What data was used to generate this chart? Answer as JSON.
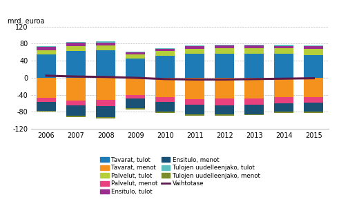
{
  "years": [
    2006,
    2007,
    2008,
    2009,
    2010,
    2011,
    2012,
    2013,
    2014,
    2015
  ],
  "tavarat_tulot": [
    55,
    63,
    64,
    46,
    52,
    56,
    57,
    57,
    56,
    54
  ],
  "palvelut_tulot": [
    10,
    11,
    12,
    9,
    11,
    12,
    13,
    13,
    13,
    14
  ],
  "ensitulo_tulot": [
    7,
    8,
    7,
    5,
    5,
    6,
    6,
    6,
    6,
    6
  ],
  "tulojen_tulot": [
    2,
    2,
    2,
    2,
    2,
    2,
    2,
    2,
    2,
    2
  ],
  "tavarat_menot": [
    -47,
    -54,
    -52,
    -40,
    -46,
    -50,
    -49,
    -48,
    -46,
    -45
  ],
  "palvelut_menot": [
    -10,
    -11,
    -14,
    -9,
    -10,
    -13,
    -15,
    -15,
    -14,
    -14
  ],
  "ensitulo_menot": [
    -20,
    -24,
    -26,
    -22,
    -23,
    -23,
    -22,
    -22,
    -20,
    -20
  ],
  "tulojen_menot": [
    -3,
    -3,
    -3,
    -3,
    -3,
    -3,
    -3,
    -3,
    -3,
    -3
  ],
  "vaihtotase": [
    5,
    3,
    2,
    0,
    -3,
    -4,
    -4,
    -3,
    -2,
    -1
  ],
  "colors": {
    "tavarat_tulot": "#1f7bb5",
    "palvelut_tulot": "#b5cf3b",
    "ensitulo_tulot": "#9b2d8e",
    "tulojen_tulot": "#5bbfbf",
    "tavarat_menot": "#f5921e",
    "palvelut_menot": "#e8417d",
    "ensitulo_menot": "#1a5276",
    "tulojen_menot": "#7d8c2a",
    "vaihtotase": "#5c1a4a"
  },
  "ylabel": "mrd. euroa",
  "ylim": [
    -120,
    120
  ],
  "yticks": [
    -120,
    -80,
    -40,
    0,
    40,
    80,
    120
  ],
  "bar_width": 0.65
}
